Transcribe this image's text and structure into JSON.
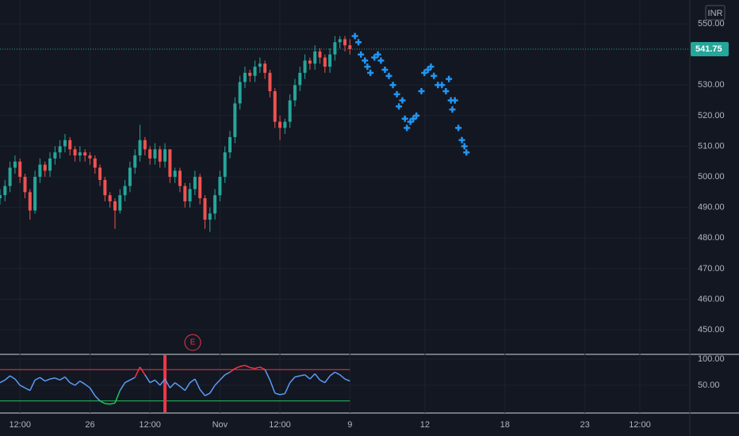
{
  "chart_data": [
    {
      "type": "candlestick",
      "currency": "INR",
      "last_price": 541.75,
      "up_color": "#26a69a",
      "down_color": "#ef5350",
      "forecast_color": "#2196f3",
      "ylim": [
        442.5,
        557.8
      ],
      "xlim": [
        0,
        138
      ],
      "yticks": [
        {
          "value": 550,
          "label": "550.00"
        },
        {
          "value": 530,
          "label": "530.00"
        },
        {
          "value": 520,
          "label": "520.00"
        },
        {
          "value": 510,
          "label": "510.00"
        },
        {
          "value": 500,
          "label": "500.00"
        },
        {
          "value": 490,
          "label": "490.00"
        },
        {
          "value": 480,
          "label": "480.00"
        },
        {
          "value": 470,
          "label": "470.00"
        },
        {
          "value": 460,
          "label": "460.00"
        },
        {
          "value": 450,
          "label": "450.00"
        }
      ],
      "xticks": [
        {
          "value": 4,
          "label": "12:00"
        },
        {
          "value": 18,
          "label": "26"
        },
        {
          "value": 30,
          "label": "12:00"
        },
        {
          "value": 44,
          "label": "Nov"
        },
        {
          "value": 56,
          "label": "12:00"
        },
        {
          "value": 70,
          "label": "9"
        },
        {
          "value": 85,
          "label": "12"
        },
        {
          "value": 101,
          "label": "18"
        },
        {
          "value": 117,
          "label": "23"
        },
        {
          "value": 128,
          "label": "12:00"
        }
      ],
      "grid": true,
      "annotation": "E",
      "annotation_x": 33,
      "x": [
        0,
        1,
        2,
        3,
        4,
        5,
        6,
        7,
        8,
        9,
        10,
        11,
        12,
        13,
        14,
        15,
        16,
        17,
        18,
        19,
        20,
        21,
        22,
        23,
        24,
        25,
        26,
        27,
        28,
        29,
        30,
        31,
        32,
        33,
        34,
        35,
        36,
        37,
        38,
        39,
        40,
        41,
        42,
        43,
        44,
        45,
        46,
        47,
        48,
        49,
        50,
        51,
        52,
        53,
        54,
        55,
        56,
        57,
        58,
        59,
        60,
        61,
        62,
        63,
        64,
        65,
        66,
        67,
        68,
        69,
        70
      ],
      "close": [
        494,
        497,
        503,
        505,
        500,
        495,
        489,
        500,
        504,
        502,
        506,
        508,
        510,
        512,
        509,
        507,
        508,
        507,
        506,
        503,
        499,
        494,
        492,
        489,
        494,
        497,
        503,
        507,
        512,
        509,
        506,
        509,
        505,
        509,
        500,
        502,
        497,
        492,
        496,
        500,
        493,
        486,
        488,
        494,
        500,
        508,
        513,
        524,
        531,
        534,
        533,
        536,
        537,
        534,
        528,
        518,
        516,
        518,
        525,
        530,
        534,
        538,
        537,
        541,
        539,
        536,
        540,
        544,
        545,
        543,
        541.75
      ],
      "open": [
        493,
        494,
        497,
        503,
        505,
        500,
        495,
        489,
        500,
        504,
        502,
        506,
        508,
        510,
        512,
        509,
        507,
        508,
        507,
        506,
        503,
        499,
        494,
        492,
        489,
        494,
        497,
        503,
        507,
        512,
        509,
        506,
        509,
        505,
        509,
        500,
        502,
        497,
        492,
        496,
        500,
        493,
        486,
        488,
        494,
        500,
        508,
        513,
        524,
        531,
        534,
        533,
        536,
        537,
        534,
        528,
        518,
        516,
        518,
        525,
        530,
        534,
        538,
        537,
        541,
        539,
        536,
        540,
        544,
        545,
        543
      ],
      "high": [
        496,
        499,
        505,
        507,
        506,
        501,
        496,
        502,
        506,
        505,
        508,
        510,
        512,
        514,
        513,
        510,
        510,
        509,
        508,
        507,
        504,
        500,
        495,
        493,
        496,
        499,
        505,
        509,
        517,
        513,
        510,
        511,
        510,
        511,
        509,
        503,
        503,
        498,
        498,
        502,
        501,
        494,
        490,
        496,
        502,
        510,
        515,
        526,
        533,
        536,
        535,
        538,
        539,
        538,
        535,
        529,
        520,
        519,
        527,
        532,
        536,
        540,
        539,
        543,
        542,
        540,
        542,
        546,
        546,
        546,
        545
      ],
      "low": [
        491,
        492,
        495,
        501,
        498,
        493,
        486,
        488,
        498,
        500,
        500,
        504,
        506,
        508,
        507,
        505,
        505,
        505,
        504,
        501,
        497,
        492,
        490,
        483,
        488,
        492,
        495,
        501,
        505,
        507,
        504,
        504,
        503,
        503,
        498,
        498,
        495,
        490,
        490,
        494,
        491,
        483,
        482,
        486,
        492,
        498,
        506,
        511,
        522,
        529,
        531,
        531,
        534,
        532,
        526,
        516,
        512,
        514,
        516,
        523,
        528,
        532,
        535,
        535,
        537,
        534,
        534,
        538,
        542,
        541,
        540
      ],
      "forecast_x": [
        71.0,
        71.7,
        72.2,
        73.0,
        73.5,
        74.1,
        74.9,
        75.6,
        76.2,
        77.0,
        77.8,
        78.6,
        79.4,
        79.8,
        80.5,
        81.0,
        81.4,
        82.1,
        82.7,
        83.3,
        84.3,
        84.9,
        85.6,
        86.2,
        86.8,
        87.6,
        88.4,
        89.2,
        89.8,
        90.2,
        90.5,
        91.0,
        91.7,
        92.4,
        92.9,
        93.3
      ],
      "forecast": [
        546,
        544,
        540,
        538,
        536,
        534,
        539,
        540,
        538,
        535,
        533,
        530,
        527,
        523,
        525,
        519,
        516,
        518,
        519,
        520,
        528,
        534,
        535,
        536,
        533,
        530,
        530,
        528,
        532,
        525,
        522,
        525,
        516,
        512,
        510,
        508
      ]
    },
    {
      "type": "rsi",
      "color": "#5b9cf6",
      "upper_color": "#f23645",
      "lower_color": "#22c55e",
      "upper": 80,
      "lower": 20,
      "ylim": [
        -1.5,
        107.6
      ],
      "yticks": [
        {
          "value": 100,
          "label": "100.00"
        },
        {
          "value": 50,
          "label": "50.00"
        }
      ],
      "values": [
        55,
        60,
        68,
        62,
        50,
        45,
        40,
        60,
        65,
        58,
        62,
        64,
        60,
        66,
        55,
        50,
        58,
        52,
        45,
        30,
        20,
        15,
        14,
        16,
        40,
        55,
        60,
        65,
        85,
        70,
        55,
        60,
        50,
        62,
        45,
        55,
        48,
        40,
        55,
        62,
        42,
        30,
        35,
        50,
        60,
        70,
        75,
        82,
        86,
        88,
        84,
        82,
        85,
        80,
        60,
        35,
        32,
        34,
        55,
        66,
        68,
        70,
        62,
        72,
        60,
        55,
        68,
        75,
        70,
        62,
        58
      ]
    }
  ]
}
